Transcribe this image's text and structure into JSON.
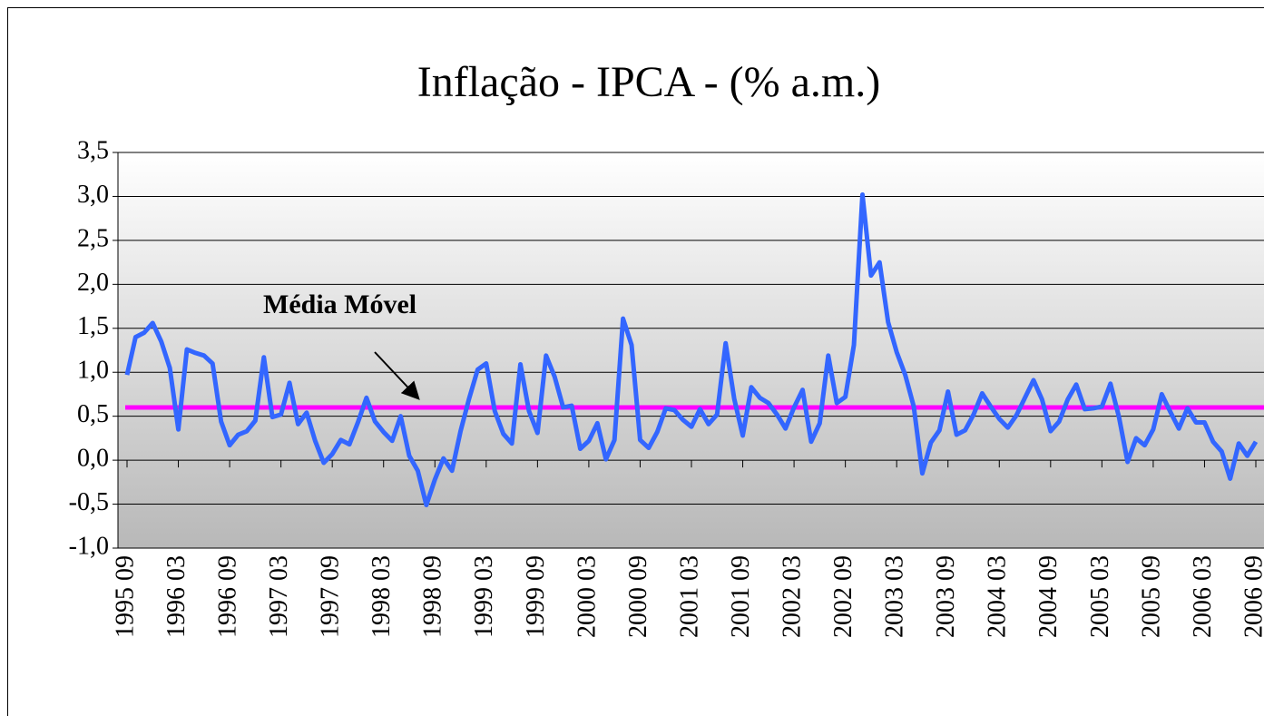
{
  "chart_data": {
    "type": "line",
    "title": "Inflação - IPCA - (% a.m.)",
    "categories": [
      "1995 09",
      null,
      null,
      null,
      null,
      null,
      "1996 03",
      null,
      null,
      null,
      null,
      null,
      "1996 09",
      null,
      null,
      null,
      null,
      null,
      "1997 03",
      null,
      null,
      null,
      null,
      null,
      "1997 09",
      null,
      null,
      null,
      null,
      null,
      "1998 03",
      null,
      null,
      null,
      null,
      null,
      "1998 09",
      null,
      null,
      null,
      null,
      null,
      "1999 03",
      null,
      null,
      null,
      null,
      null,
      "1999 09",
      null,
      null,
      null,
      null,
      null,
      "2000 03",
      null,
      null,
      null,
      null,
      null,
      "2000 09",
      null,
      null,
      null,
      null,
      null,
      "2001 03",
      null,
      null,
      null,
      null,
      null,
      "2001 09",
      null,
      null,
      null,
      null,
      null,
      "2002 03",
      null,
      null,
      null,
      null,
      null,
      "2002 09",
      null,
      null,
      null,
      null,
      null,
      "2003 03",
      null,
      null,
      null,
      null,
      null,
      "2003 09",
      null,
      null,
      null,
      null,
      null,
      "2004 03",
      null,
      null,
      null,
      null,
      null,
      "2004 09",
      null,
      null,
      null,
      null,
      null,
      "2005 03",
      null,
      null,
      null,
      null,
      null,
      "2005 09",
      null,
      null,
      null,
      null,
      null,
      "2006 03",
      null,
      null,
      null,
      null,
      null,
      "2006 09"
    ],
    "series": [
      {
        "color": "#3366ff",
        "values": [
          0.97,
          1.4,
          1.45,
          1.56,
          1.35,
          1.05,
          0.35,
          1.26,
          1.22,
          1.19,
          1.1,
          0.44,
          0.17,
          0.29,
          0.33,
          0.45,
          1.17,
          0.49,
          0.52,
          0.88,
          0.41,
          0.54,
          0.22,
          -0.03,
          0.07,
          0.23,
          0.18,
          0.43,
          0.71,
          0.44,
          0.32,
          0.22,
          0.5,
          0.05,
          -0.12,
          -0.51,
          -0.22,
          0.02,
          -0.12,
          0.33,
          0.7,
          1.03,
          1.1,
          0.56,
          0.3,
          0.19,
          1.09,
          0.56,
          0.31,
          1.19,
          0.95,
          0.6,
          0.62,
          0.13,
          0.22,
          0.42,
          0.01,
          0.23,
          1.61,
          1.31,
          0.23,
          0.14,
          0.32,
          0.59,
          0.57,
          0.46,
          0.38,
          0.58,
          0.41,
          0.52,
          1.33,
          0.7,
          0.28,
          0.83,
          0.71,
          0.65,
          0.52,
          0.36,
          0.6,
          0.8,
          0.21,
          0.42,
          1.19,
          0.65,
          0.72,
          1.31,
          3.02,
          2.1,
          2.25,
          1.57,
          1.23,
          0.97,
          0.61,
          -0.15,
          0.2,
          0.34,
          0.78,
          0.29,
          0.34,
          0.52,
          0.76,
          0.61,
          0.47,
          0.37,
          0.51,
          0.71,
          0.91,
          0.69,
          0.33,
          0.44,
          0.69,
          0.86,
          0.58,
          0.59,
          0.61,
          0.87,
          0.49,
          -0.02,
          0.25,
          0.17,
          0.35,
          0.75,
          0.55,
          0.36,
          0.59,
          0.43,
          0.43,
          0.21,
          0.1,
          -0.21,
          0.19,
          0.05,
          0.21
        ]
      }
    ],
    "reference_line": {
      "label": "Média Móvel",
      "value": 0.6,
      "color": "#ff00ff"
    },
    "ylim": [
      -1.0,
      3.5
    ],
    "yticks": [
      {
        "value": -1.0,
        "label": "-1,0"
      },
      {
        "value": -0.5,
        "label": "-0,5"
      },
      {
        "value": 0,
        "label": "0,0"
      },
      {
        "value": 0.5,
        "label": "0,5"
      },
      {
        "value": 1.0,
        "label": "1,0"
      },
      {
        "value": 1.5,
        "label": "1,5"
      },
      {
        "value": 2.0,
        "label": "2,0"
      },
      {
        "value": 2.5,
        "label": "2,5"
      },
      {
        "value": 3.0,
        "label": "3,0"
      },
      {
        "value": 3.5,
        "label": "3,5"
      }
    ],
    "grid": true
  }
}
